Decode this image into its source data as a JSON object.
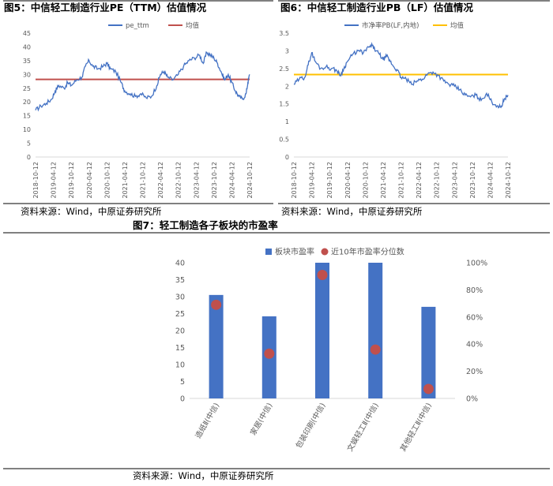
{
  "fig5": {
    "title": "图5：中信轻工制造行业PE（TTM）估值情况",
    "source": "资料来源：Wind，中原证券研究所"
  },
  "fig6": {
    "title": "图6：中信轻工制造行业PB（LF）估值情况",
    "source": "资料来源：Wind，中原证券研究所"
  },
  "fig7": {
    "title": "图7：轻工制造各子板块的市盈率",
    "source": "资料来源：Wind，中原证券研究所"
  },
  "colors": {
    "blue": "#4472C4",
    "red": "#C0504D",
    "gold": "#FFC000",
    "dot": "#C0504D"
  },
  "chart_data": [
    {
      "type": "line",
      "id": "pe",
      "x_ticks": [
        "2018-10-12",
        "2019-04-12",
        "2019-10-12",
        "2020-04-12",
        "2020-10-12",
        "2021-04-12",
        "2021-10-12",
        "2022-04-12",
        "2022-10-12",
        "2023-04-12",
        "2023-10-12",
        "2024-04-12",
        "2024-10-12"
      ],
      "y_ticks": [
        0,
        5,
        10,
        15,
        20,
        25,
        30,
        35,
        40,
        45
      ],
      "ylim": [
        0,
        45
      ],
      "series": [
        {
          "name": "pe_ttm",
          "kind": "line",
          "points": [
            [
              0,
              17
            ],
            [
              0.3,
              18.5
            ],
            [
              0.6,
              19.5
            ],
            [
              0.9,
              21
            ],
            [
              1.1,
              24
            ],
            [
              1.3,
              26
            ],
            [
              1.6,
              25
            ],
            [
              1.8,
              27
            ],
            [
              2.0,
              26
            ],
            [
              2.3,
              28
            ],
            [
              2.6,
              29
            ],
            [
              2.8,
              33
            ],
            [
              3.0,
              35
            ],
            [
              3.2,
              33
            ],
            [
              3.5,
              32
            ],
            [
              3.8,
              33
            ],
            [
              4.0,
              34
            ],
            [
              4.2,
              32
            ],
            [
              4.5,
              31
            ],
            [
              4.8,
              27
            ],
            [
              5.0,
              24
            ],
            [
              5.3,
              23
            ],
            [
              5.6,
              22
            ],
            [
              5.9,
              23
            ],
            [
              6.2,
              21.5
            ],
            [
              6.5,
              22
            ],
            [
              6.8,
              26
            ],
            [
              7.0,
              30
            ],
            [
              7.2,
              31
            ],
            [
              7.4,
              29
            ],
            [
              7.7,
              28
            ],
            [
              8.0,
              30
            ],
            [
              8.3,
              33
            ],
            [
              8.6,
              35
            ],
            [
              8.9,
              36
            ],
            [
              9.2,
              37
            ],
            [
              9.4,
              34
            ],
            [
              9.6,
              38
            ],
            [
              9.8,
              37
            ],
            [
              10.0,
              36
            ],
            [
              10.2,
              34
            ],
            [
              10.4,
              31
            ],
            [
              10.6,
              28
            ],
            [
              10.8,
              30
            ],
            [
              11.0,
              27
            ],
            [
              11.2,
              24
            ],
            [
              11.4,
              22
            ],
            [
              11.6,
              21
            ],
            [
              11.8,
              23
            ],
            [
              11.9,
              27
            ],
            [
              12.0,
              30
            ]
          ]
        },
        {
          "name": "均值",
          "kind": "mean",
          "value": 28.2
        }
      ]
    },
    {
      "type": "line",
      "id": "pb",
      "x_ticks": [
        "2018-10-12",
        "2019-04-12",
        "2019-10-12",
        "2020-04-12",
        "2020-10-12",
        "2021-04-12",
        "2021-10-12",
        "2022-04-12",
        "2022-10-12",
        "2023-04-12",
        "2023-10-12",
        "2024-04-12",
        "2024-10-12"
      ],
      "y_ticks": [
        0,
        0.5,
        1,
        1.5,
        2,
        2.5,
        3,
        3.5
      ],
      "ylim": [
        0,
        3.5
      ],
      "series": [
        {
          "name": "市净率PB(LF,内地)",
          "kind": "line",
          "points": [
            [
              0,
              2.05
            ],
            [
              0.3,
              2.2
            ],
            [
              0.6,
              2.25
            ],
            [
              0.8,
              2.6
            ],
            [
              1.0,
              2.95
            ],
            [
              1.2,
              2.7
            ],
            [
              1.5,
              2.5
            ],
            [
              1.8,
              2.55
            ],
            [
              2.1,
              2.5
            ],
            [
              2.4,
              2.45
            ],
            [
              2.6,
              2.3
            ],
            [
              2.8,
              2.5
            ],
            [
              3.0,
              2.7
            ],
            [
              3.3,
              2.9
            ],
            [
              3.6,
              3.0
            ],
            [
              3.9,
              2.95
            ],
            [
              4.2,
              3.1
            ],
            [
              4.4,
              3.15
            ],
            [
              4.6,
              3.0
            ],
            [
              4.8,
              2.9
            ],
            [
              5.0,
              2.75
            ],
            [
              5.2,
              2.85
            ],
            [
              5.4,
              2.7
            ],
            [
              5.6,
              2.55
            ],
            [
              5.8,
              2.45
            ],
            [
              6.0,
              2.25
            ],
            [
              6.3,
              2.2
            ],
            [
              6.6,
              2.05
            ],
            [
              6.9,
              2.15
            ],
            [
              7.2,
              2.2
            ],
            [
              7.5,
              2.35
            ],
            [
              7.8,
              2.4
            ],
            [
              8.1,
              2.3
            ],
            [
              8.4,
              2.15
            ],
            [
              8.7,
              2.05
            ],
            [
              9.0,
              2.0
            ],
            [
              9.3,
              1.9
            ],
            [
              9.6,
              1.75
            ],
            [
              9.9,
              1.7
            ],
            [
              10.2,
              1.75
            ],
            [
              10.5,
              1.6
            ],
            [
              10.8,
              1.8
            ],
            [
              11.1,
              1.55
            ],
            [
              11.4,
              1.45
            ],
            [
              11.6,
              1.4
            ],
            [
              11.8,
              1.65
            ],
            [
              12.0,
              1.75
            ]
          ]
        },
        {
          "name": "均值",
          "kind": "mean",
          "value": 2.33
        }
      ]
    },
    {
      "type": "bar",
      "id": "sector",
      "categories": [
        "造纸Ⅱ(中信)",
        "家居(中信)",
        "包装印刷(中信)",
        "文娱轻工Ⅱ(中信)",
        "其他轻工Ⅱ(中信)"
      ],
      "y_ticks_left": [
        0,
        5,
        10,
        15,
        20,
        25,
        30,
        35,
        40
      ],
      "ylim_left": [
        0,
        40
      ],
      "y_ticks_right": [
        "0%",
        "20%",
        "40%",
        "60%",
        "80%",
        "100%"
      ],
      "ylim_right": [
        0,
        1
      ],
      "series": [
        {
          "name": "板块市盈率",
          "kind": "bar",
          "axis": "left",
          "values": [
            30.5,
            24.2,
            40.0,
            40.0,
            27.0
          ]
        },
        {
          "name": "近10年市盈率分位数",
          "kind": "dot",
          "axis": "right",
          "values": [
            0.69,
            0.33,
            0.91,
            0.36,
            0.07
          ]
        }
      ]
    }
  ]
}
